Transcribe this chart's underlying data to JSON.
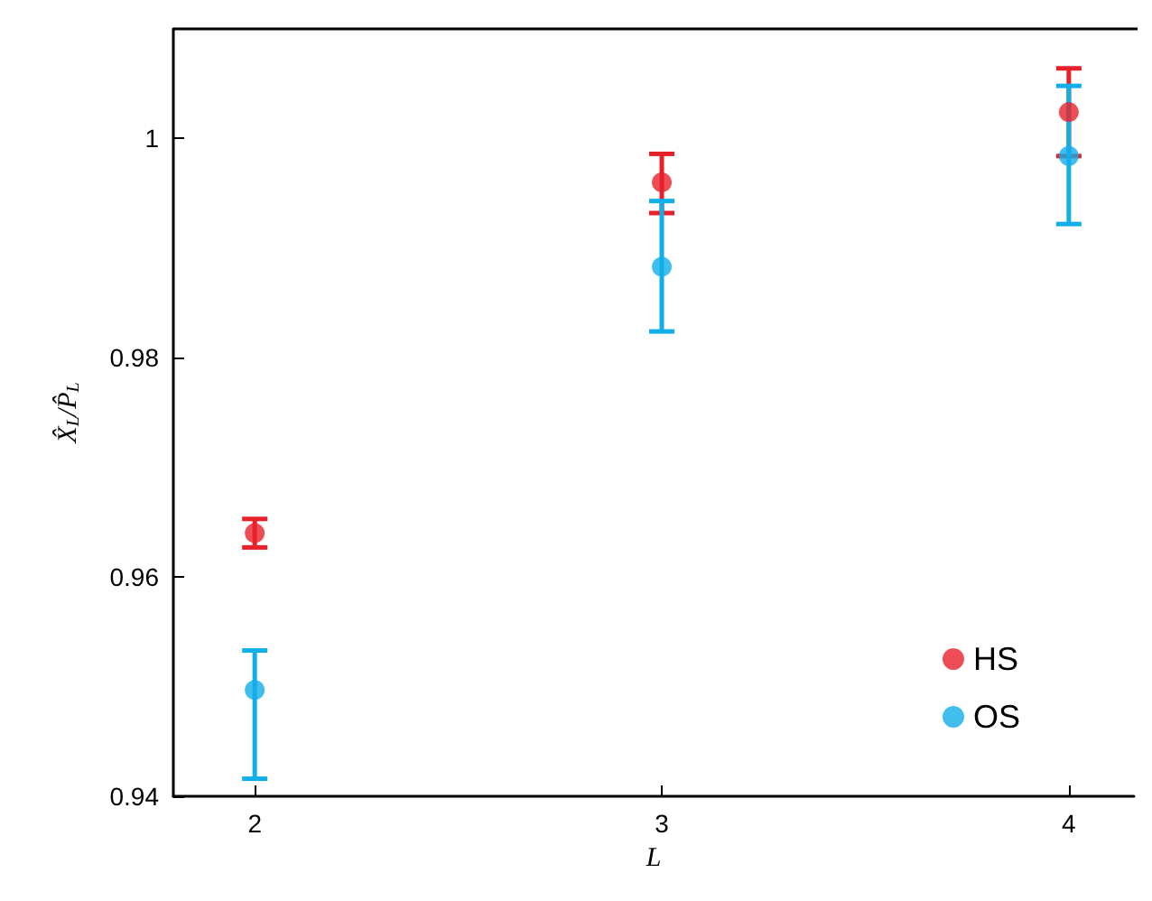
{
  "chart_data": {
    "type": "scatter",
    "xlabel": "L",
    "ylabel": "X̂$_{L}$/P̂$_{L}$",
    "x": [
      2,
      3,
      4
    ],
    "series": [
      {
        "name": "HS",
        "color": "#e8202a",
        "values": [
          0.964,
          0.996,
          1.0024
        ],
        "errors": [
          0.0013,
          [
            0.9932,
            0.9986
          ],
          0.004
        ]
      },
      {
        "name": "OS",
        "color": "#11aee8",
        "values": [
          0.9497,
          0.9883,
          0.9984
        ],
        "errors": [
          [
            0.9416,
            0.9533
          ],
          [
            0.9824,
            0.9943
          ],
          [
            0.9922,
            1.0048
          ]
        ]
      }
    ],
    "xlim": [
      1.8,
      4.16
    ],
    "ylim": [
      0.94,
      1.01
    ],
    "xticks": [
      2,
      3,
      4
    ],
    "yticks": [
      0.94,
      0.96,
      0.98,
      1
    ],
    "grid": false,
    "legend": "bottom right",
    "marker": "circle"
  }
}
